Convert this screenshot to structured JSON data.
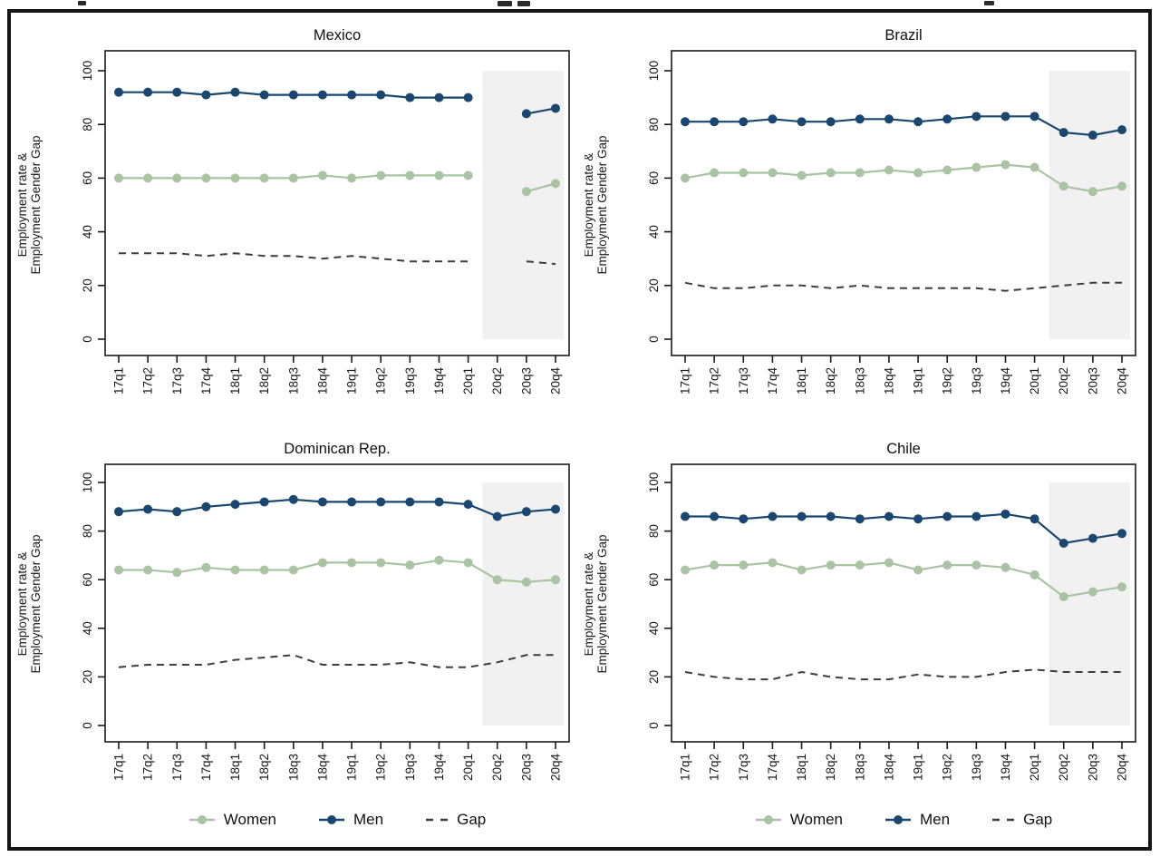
{
  "colors": {
    "women": "#a9c4a2",
    "men": "#1a476f",
    "gap": "#3d3d3d",
    "band": "#f1f1f1",
    "axis": "#1a1a1a"
  },
  "legend": {
    "items": [
      {
        "label": "Women",
        "series": "women"
      },
      {
        "label": "Men",
        "series": "men"
      },
      {
        "label": "Gap",
        "series": "gap"
      }
    ]
  },
  "axis": {
    "ylabel_lines": [
      "Employment rate &",
      "Employment Gender Gap"
    ],
    "yticks": [
      0,
      20,
      40,
      60,
      80,
      100
    ],
    "ylim": [
      0,
      100
    ]
  },
  "chart_data": [
    {
      "type": "line",
      "title": "Mexico",
      "x": [
        "17q1",
        "17q2",
        "17q3",
        "17q4",
        "18q1",
        "18q2",
        "18q3",
        "18q4",
        "19q1",
        "19q2",
        "19q3",
        "19q4",
        "20q1",
        "20q2",
        "20q3",
        "20q4"
      ],
      "ylim": [
        0,
        100
      ],
      "yticks": [
        0,
        20,
        40,
        60,
        80,
        100
      ],
      "ylabel": [
        "Employment rate &",
        "Employment Gender Gap"
      ],
      "shaded_x_region": [
        "20q2",
        "20q4"
      ],
      "series": [
        {
          "name": "Women",
          "color_key": "women",
          "style": "solid-dot",
          "values": [
            60,
            60,
            60,
            60,
            60,
            60,
            60,
            61,
            60,
            61,
            61,
            61,
            61,
            null,
            55,
            58
          ]
        },
        {
          "name": "Men",
          "color_key": "men",
          "style": "solid-dot",
          "values": [
            92,
            92,
            92,
            91,
            92,
            91,
            91,
            91,
            91,
            91,
            90,
            90,
            90,
            null,
            84,
            86
          ]
        },
        {
          "name": "Gap",
          "color_key": "gap",
          "style": "dashed",
          "values": [
            32,
            32,
            32,
            31,
            32,
            31,
            31,
            30,
            31,
            30,
            29,
            29,
            29,
            null,
            29,
            28
          ]
        }
      ]
    },
    {
      "type": "line",
      "title": "Brazil",
      "x": [
        "17q1",
        "17q2",
        "17q3",
        "17q4",
        "18q1",
        "18q2",
        "18q3",
        "18q4",
        "19q1",
        "19q2",
        "19q3",
        "19q4",
        "20q1",
        "20q2",
        "20q3",
        "20q4"
      ],
      "ylim": [
        0,
        100
      ],
      "yticks": [
        0,
        20,
        40,
        60,
        80,
        100
      ],
      "ylabel": [
        "Employment rate &",
        "Employment Gender Gap"
      ],
      "shaded_x_region": [
        "20q2",
        "20q4"
      ],
      "series": [
        {
          "name": "Women",
          "color_key": "women",
          "style": "solid-dot",
          "values": [
            60,
            62,
            62,
            62,
            61,
            62,
            62,
            63,
            62,
            63,
            64,
            65,
            64,
            57,
            55,
            57
          ]
        },
        {
          "name": "Men",
          "color_key": "men",
          "style": "solid-dot",
          "values": [
            81,
            81,
            81,
            82,
            81,
            81,
            82,
            82,
            81,
            82,
            83,
            83,
            83,
            77,
            76,
            78
          ]
        },
        {
          "name": "Gap",
          "color_key": "gap",
          "style": "dashed",
          "values": [
            21,
            19,
            19,
            20,
            20,
            19,
            20,
            19,
            19,
            19,
            19,
            18,
            19,
            20,
            21,
            21
          ]
        }
      ]
    },
    {
      "type": "line",
      "title": "Dominican Rep.",
      "x": [
        "17q1",
        "17q2",
        "17q3",
        "17q4",
        "18q1",
        "18q2",
        "18q3",
        "18q4",
        "19q1",
        "19q2",
        "19q3",
        "19q4",
        "20q1",
        "20q2",
        "20q3",
        "20q4"
      ],
      "ylim": [
        0,
        100
      ],
      "yticks": [
        0,
        20,
        40,
        60,
        80,
        100
      ],
      "ylabel": [
        "Employment rate &",
        "Employment Gender Gap"
      ],
      "shaded_x_region": [
        "20q2",
        "20q4"
      ],
      "series": [
        {
          "name": "Women",
          "color_key": "women",
          "style": "solid-dot",
          "values": [
            64,
            64,
            63,
            65,
            64,
            64,
            64,
            67,
            67,
            67,
            66,
            68,
            67,
            60,
            59,
            60
          ]
        },
        {
          "name": "Men",
          "color_key": "men",
          "style": "solid-dot",
          "values": [
            88,
            89,
            88,
            90,
            91,
            92,
            93,
            92,
            92,
            92,
            92,
            92,
            91,
            86,
            88,
            89
          ]
        },
        {
          "name": "Gap",
          "color_key": "gap",
          "style": "dashed",
          "values": [
            24,
            25,
            25,
            25,
            27,
            28,
            29,
            25,
            25,
            25,
            26,
            24,
            24,
            26,
            29,
            29
          ]
        }
      ]
    },
    {
      "type": "line",
      "title": "Chile",
      "x": [
        "17q1",
        "17q2",
        "17q3",
        "17q4",
        "18q1",
        "18q2",
        "18q3",
        "18q4",
        "19q1",
        "19q2",
        "19q3",
        "19q4",
        "20q1",
        "20q2",
        "20q3",
        "20q4"
      ],
      "ylim": [
        0,
        100
      ],
      "yticks": [
        0,
        20,
        40,
        60,
        80,
        100
      ],
      "ylabel": [
        "Employment rate &",
        "Employment Gender Gap"
      ],
      "shaded_x_region": [
        "20q2",
        "20q4"
      ],
      "series": [
        {
          "name": "Women",
          "color_key": "women",
          "style": "solid-dot",
          "values": [
            64,
            66,
            66,
            67,
            64,
            66,
            66,
            67,
            64,
            66,
            66,
            65,
            62,
            53,
            55,
            57
          ]
        },
        {
          "name": "Men",
          "color_key": "men",
          "style": "solid-dot",
          "values": [
            86,
            86,
            85,
            86,
            86,
            86,
            85,
            86,
            85,
            86,
            86,
            87,
            85,
            75,
            77,
            79
          ]
        },
        {
          "name": "Gap",
          "color_key": "gap",
          "style": "dashed",
          "values": [
            22,
            20,
            19,
            19,
            22,
            20,
            19,
            19,
            21,
            20,
            20,
            22,
            23,
            22,
            22,
            22
          ]
        }
      ]
    }
  ]
}
